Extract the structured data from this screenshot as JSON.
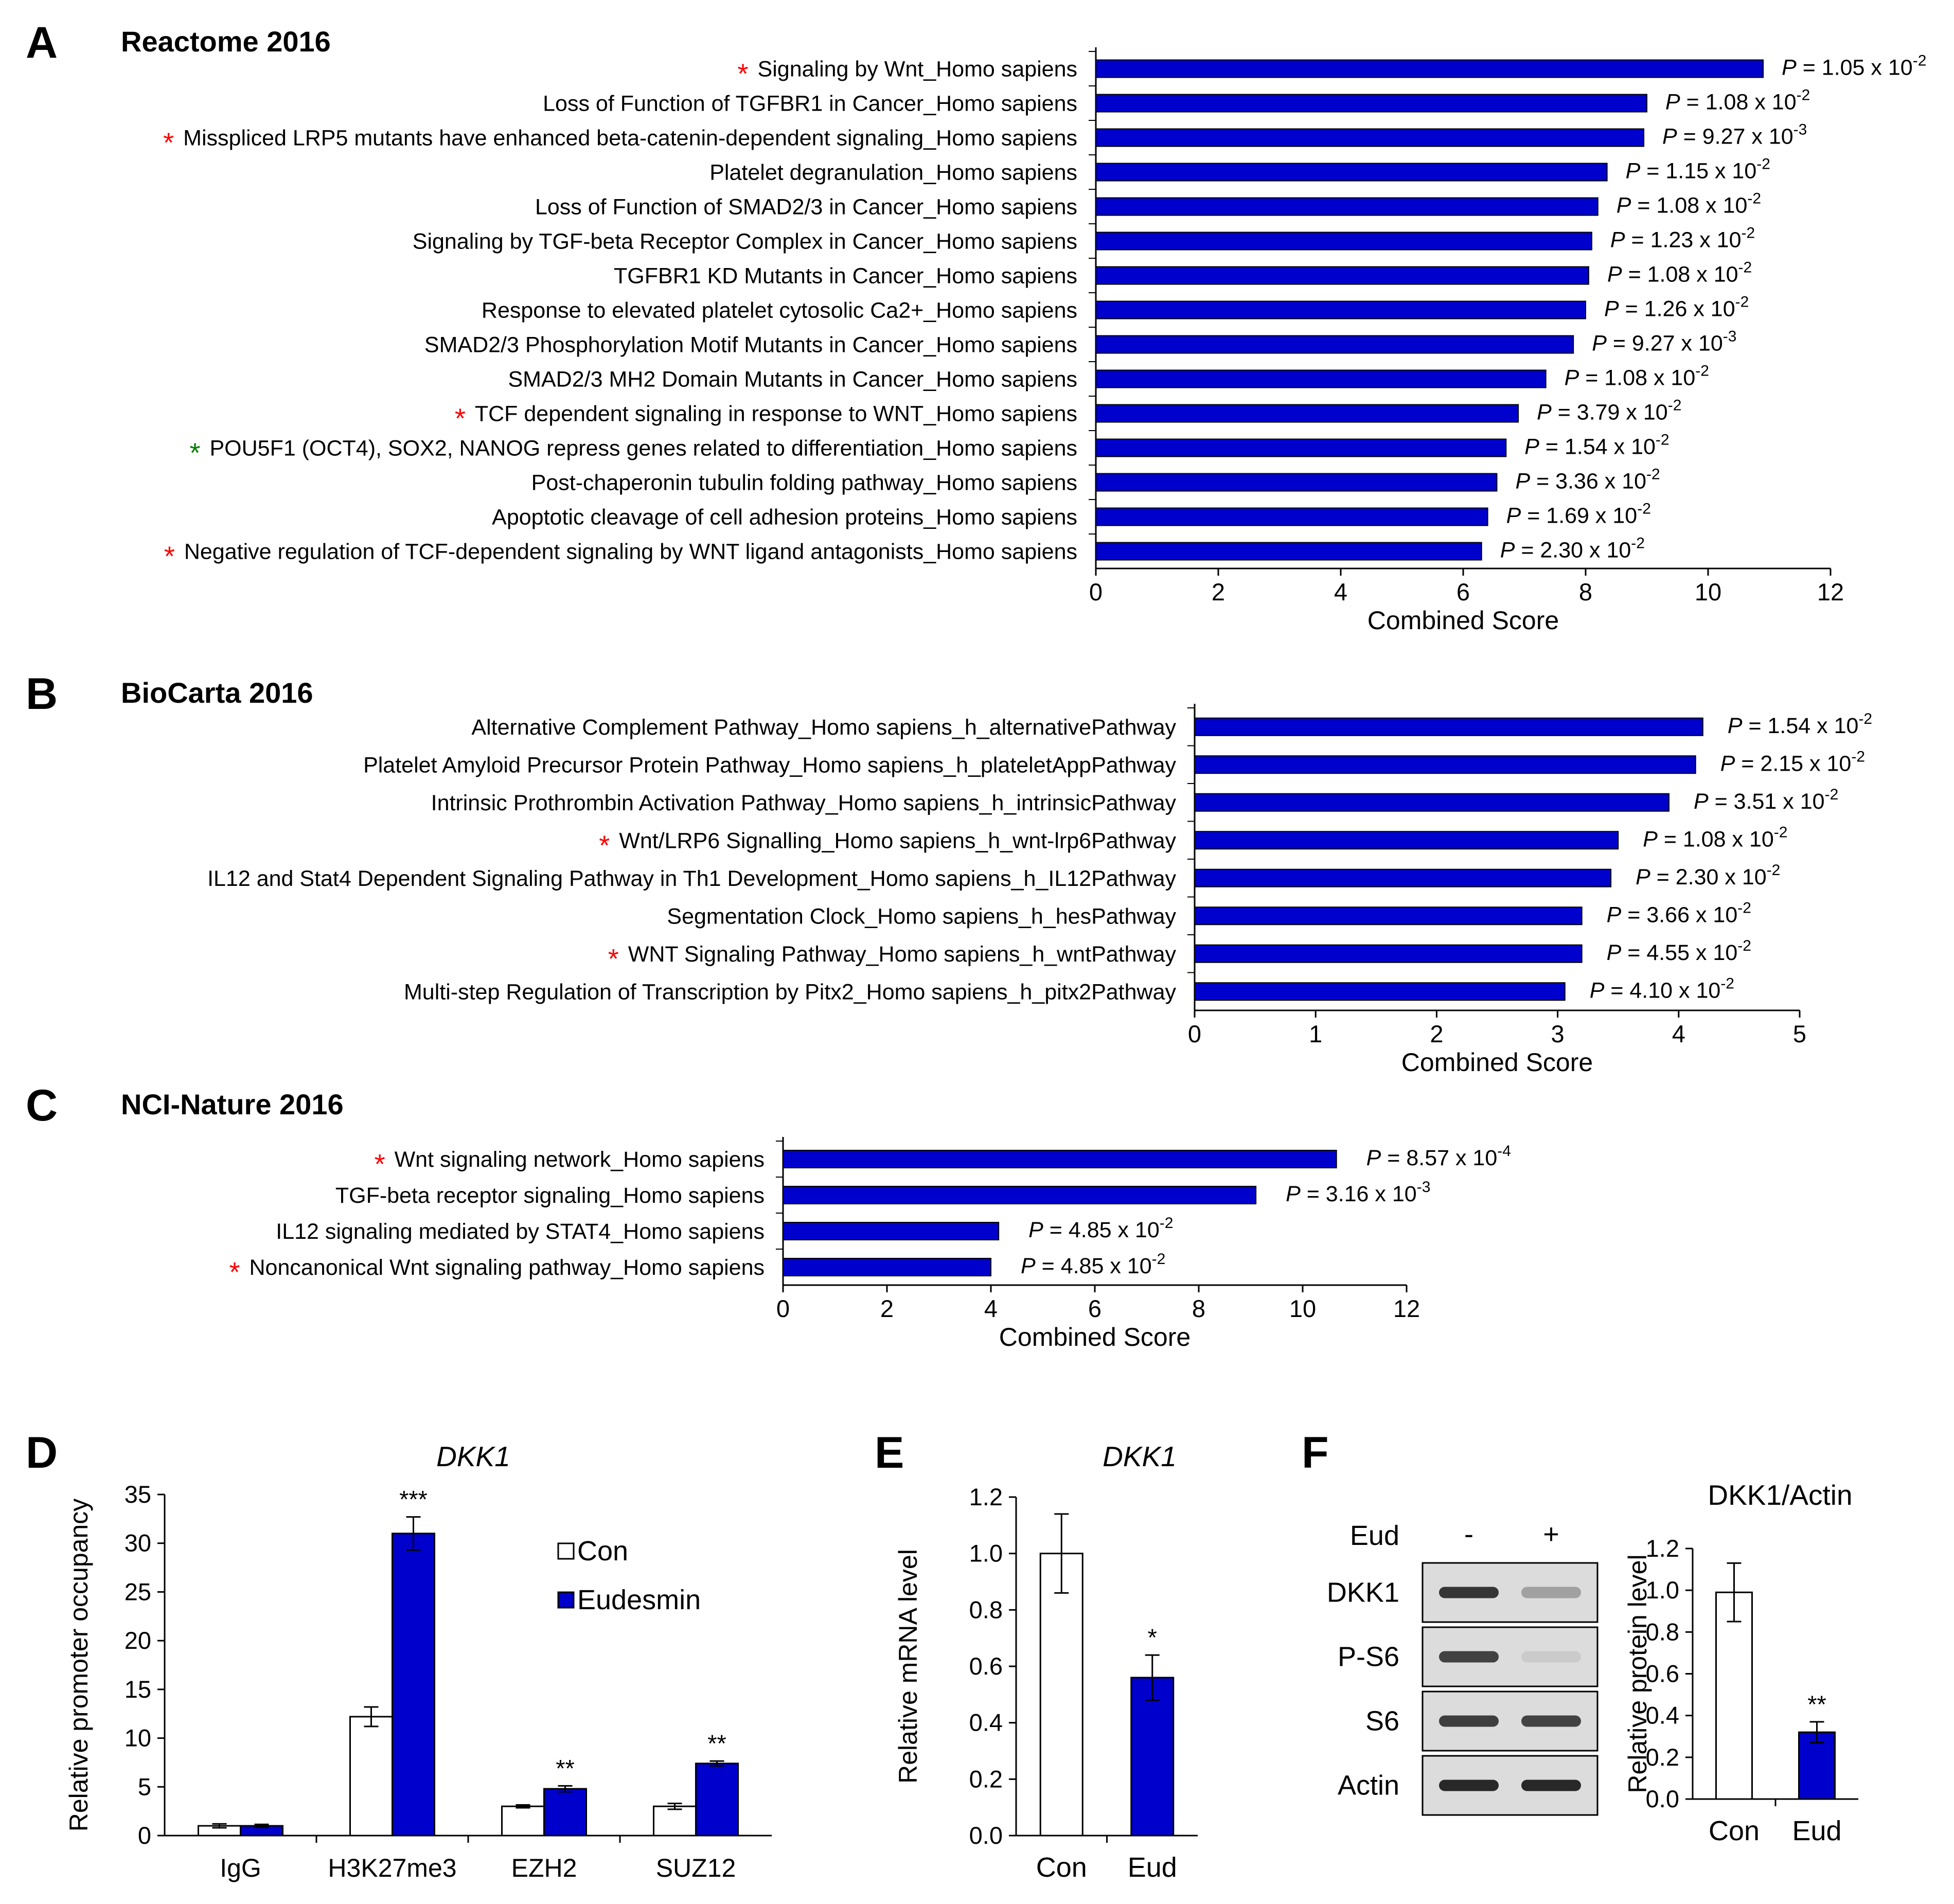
{
  "colors": {
    "bar": "#0000CC",
    "star_red": "#FF0000",
    "star_green": "#008000",
    "axis": "#000000",
    "open_bar": "#FFFFFF"
  },
  "panels": {
    "A": {
      "letter": "A",
      "title": "Reactome 2016"
    },
    "B": {
      "letter": "B",
      "title": "BioCarta 2016"
    },
    "C": {
      "letter": "C",
      "title": "NCI-Nature 2016"
    },
    "D": {
      "letter": "D",
      "gene": "DKK1"
    },
    "E": {
      "letter": "E",
      "gene": "DKK1"
    },
    "F": {
      "letter": "F",
      "subtitle": "DKK1/Actin"
    }
  },
  "chart_data": [
    {
      "id": "A",
      "type": "bar",
      "orientation": "horizontal",
      "title": "Reactome 2016",
      "xlabel": "Combined Score",
      "xlim": [
        0,
        12
      ],
      "xticks": [
        "0",
        "2",
        "4",
        "6",
        "8",
        "10",
        "12"
      ],
      "categories": [
        "Signaling by Wnt_Homo sapiens",
        "Loss of Function of TGFBR1 in Cancer_Homo sapiens",
        "Misspliced LRP5 mutants have enhanced beta-catenin-dependent signaling_Homo sapiens",
        "Platelet degranulation_Homo sapiens",
        "Loss of Function of SMAD2/3 in Cancer_Homo sapiens",
        "Signaling by TGF-beta Receptor Complex in Cancer_Homo sapiens",
        "TGFBR1 KD Mutants in Cancer_Homo sapiens",
        "Response to elevated platelet cytosolic Ca2+_Homo sapiens",
        "SMAD2/3 Phosphorylation Motif Mutants in Cancer_Homo sapiens",
        "SMAD2/3 MH2 Domain Mutants in Cancer_Homo sapiens",
        "TCF dependent signaling in response to WNT_Homo sapiens",
        "POU5F1 (OCT4), SOX2, NANOG repress genes related to differentiation_Homo sapiens",
        "Post-chaperonin tubulin folding pathway_Homo sapiens",
        "Apoptotic cleavage of cell adhesion  proteins_Homo sapiens",
        "Negative regulation of TCF-dependent signaling by WNT ligand antagonists_Homo sapiens"
      ],
      "values": [
        10.9,
        9.0,
        8.95,
        8.35,
        8.2,
        8.1,
        8.05,
        8.0,
        7.8,
        7.35,
        6.9,
        6.7,
        6.55,
        6.4,
        6.3
      ],
      "stars": [
        "red",
        "",
        "red",
        "",
        "",
        "",
        "",
        "",
        "",
        "",
        "red",
        "green",
        "",
        "",
        "red"
      ],
      "p_mantissa": [
        "1.05",
        "1.08",
        "9.27",
        "1.15",
        "1.08",
        "1.23",
        "1.08",
        "1.26",
        "9.27",
        "1.08",
        "3.79",
        "1.54",
        "3.36",
        "1.69",
        "2.30"
      ],
      "p_exp": [
        "-2",
        "-2",
        "-3",
        "-2",
        "-2",
        "-2",
        "-2",
        "-2",
        "-3",
        "-2",
        "-2",
        "-2",
        "-2",
        "-2",
        "-2"
      ]
    },
    {
      "id": "B",
      "type": "bar",
      "orientation": "horizontal",
      "title": "BioCarta 2016",
      "xlabel": "Combined Score",
      "xlim": [
        0,
        5
      ],
      "xticks": [
        "0",
        "1",
        "2",
        "3",
        "4",
        "5"
      ],
      "categories": [
        "Alternative Complement Pathway_Homo sapiens_h_alternativePathway",
        "Platelet Amyloid Precursor Protein Pathway_Homo sapiens_h_plateletAppPathway",
        "Intrinsic Prothrombin Activation Pathway_Homo sapiens_h_intrinsicPathway",
        "Wnt/LRP6 Signalling_Homo sapiens_h_wnt-lrp6Pathway",
        "IL12 and Stat4 Dependent Signaling Pathway in Th1 Development_Homo sapiens_h_IL12Pathway",
        "Segmentation Clock_Homo sapiens_h_hesPathway",
        "WNT Signaling Pathway_Homo sapiens_h_wntPathway",
        "Multi-step Regulation of Transcription by Pitx2_Homo sapiens_h_pitx2Pathway"
      ],
      "values": [
        4.2,
        4.14,
        3.92,
        3.5,
        3.44,
        3.2,
        3.2,
        3.06
      ],
      "stars": [
        "",
        "",
        "",
        "red",
        "",
        "",
        "red",
        ""
      ],
      "p_mantissa": [
        "1.54",
        "2.15",
        "3.51",
        "1.08",
        "2.30",
        "3.66",
        "4.55",
        "4.10"
      ],
      "p_exp": [
        "-2",
        "-2",
        "-2",
        "-2",
        "-2",
        "-2",
        "-2",
        "-2"
      ]
    },
    {
      "id": "C",
      "type": "bar",
      "orientation": "horizontal",
      "title": "NCI-Nature 2016",
      "xlabel": "Combined Score",
      "xlim": [
        0,
        12
      ],
      "xticks": [
        "0",
        "2",
        "4",
        "6",
        "8",
        "10",
        "12"
      ],
      "categories": [
        "Wnt signaling network_Homo sapiens",
        "TGF-beta receptor signaling_Homo sapiens",
        "IL12 signaling mediated by STAT4_Homo sapiens",
        "Noncanonical Wnt signaling pathway_Homo sapiens"
      ],
      "values": [
        10.65,
        9.1,
        4.15,
        4.0
      ],
      "stars": [
        "red",
        "",
        "",
        "red"
      ],
      "p_mantissa": [
        "8.57",
        "3.16",
        "4.85",
        "4.85"
      ],
      "p_exp": [
        "-4",
        "-3",
        "-2",
        "-2"
      ]
    },
    {
      "id": "D",
      "type": "bar",
      "title": "DKK1",
      "ylabel": "Relative promoter occupancy",
      "ylim": [
        0,
        35
      ],
      "yticks": [
        "0",
        "5",
        "10",
        "15",
        "20",
        "25",
        "30",
        "35"
      ],
      "categories": [
        "IgG",
        "H3K27me3",
        "EZH2",
        "SUZ12"
      ],
      "series": [
        {
          "name": "Con",
          "values": [
            1.0,
            12.2,
            3.0,
            3.0
          ],
          "errors": [
            0.2,
            1.0,
            0.15,
            0.3
          ]
        },
        {
          "name": "Eudesmin",
          "values": [
            1.0,
            31.0,
            4.8,
            7.4
          ],
          "errors": [
            0.15,
            1.7,
            0.3,
            0.25
          ]
        }
      ],
      "significance": [
        "",
        "***",
        "**",
        "**"
      ]
    },
    {
      "id": "E",
      "type": "bar",
      "title": "DKK1",
      "ylabel": "Relative mRNA level",
      "ylim": [
        0,
        1.2
      ],
      "yticks": [
        "0.0",
        "0.2",
        "0.4",
        "0.6",
        "0.8",
        "1.0",
        "1.2"
      ],
      "categories": [
        "Con",
        "Eud"
      ],
      "values": [
        1.0,
        0.56
      ],
      "errors": [
        0.14,
        0.08
      ],
      "significance": [
        "",
        "*"
      ]
    },
    {
      "id": "F",
      "type": "bar",
      "title": "DKK1/Actin",
      "ylabel": "Relative protein level",
      "ylim": [
        0,
        1.2
      ],
      "yticks": [
        "0.0",
        "0.2",
        "0.4",
        "0.6",
        "0.8",
        "1.0",
        "1.2"
      ],
      "categories": [
        "Con",
        "Eud"
      ],
      "values": [
        0.99,
        0.32
      ],
      "errors": [
        0.14,
        0.05
      ],
      "significance": [
        "",
        "**"
      ]
    }
  ],
  "blot": {
    "treatment_label": "Eud",
    "lanes": [
      "-",
      "+"
    ],
    "rows": [
      {
        "label": "DKK1",
        "intensity": [
          0.95,
          0.45
        ]
      },
      {
        "label": "P-S6",
        "intensity": [
          0.9,
          0.12
        ]
      },
      {
        "label": "S6",
        "intensity": [
          0.92,
          0.9
        ]
      },
      {
        "label": "Actin",
        "intensity": [
          1.0,
          1.0
        ]
      }
    ]
  }
}
